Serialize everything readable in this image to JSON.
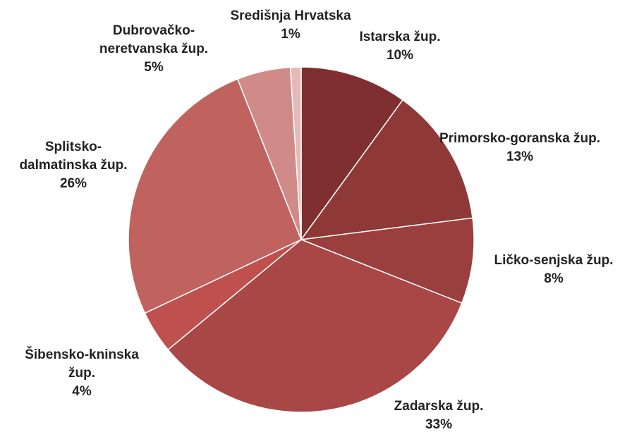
{
  "chart_data": {
    "type": "pie",
    "categories": [
      "Istarska žup.",
      "Primorsko-goranska žup.",
      "Ličko-senjska žup.",
      "Zadarska žup.",
      "Šibensko-kninska žup.",
      "Splitsko-dalmatinska žup.",
      "Dubrovačko-neretvanska žup.",
      "Središnja Hrvatska"
    ],
    "values": [
      10,
      13,
      8,
      33,
      4,
      26,
      5,
      1
    ],
    "value_labels": [
      "10%",
      "13%",
      "8%",
      "33%",
      "4%",
      "26%",
      "5%",
      "1%"
    ],
    "colors": [
      "#7f2f30",
      "#8e3838",
      "#9b3e3e",
      "#a94646",
      "#c0504d",
      "#c0635f",
      "#d08b89",
      "#e6b9b8"
    ]
  }
}
